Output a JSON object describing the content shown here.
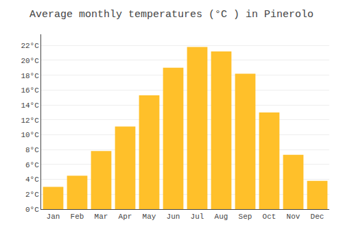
{
  "chart_data": {
    "type": "bar",
    "title": "Average monthly temperatures (°C ) in Pinerolo",
    "categories": [
      "Jan",
      "Feb",
      "Mar",
      "Apr",
      "May",
      "Jun",
      "Jul",
      "Aug",
      "Sep",
      "Oct",
      "Nov",
      "Dec"
    ],
    "values": [
      3.0,
      4.5,
      7.8,
      11.1,
      15.3,
      19.0,
      21.8,
      21.2,
      18.2,
      13.0,
      7.3,
      3.8
    ],
    "color": "#FFC02A",
    "ylim": [
      0,
      23.5
    ],
    "yticks": [
      {
        "value": 0,
        "label": "0°C"
      },
      {
        "value": 2,
        "label": "2°C"
      },
      {
        "value": 4,
        "label": "4°C"
      },
      {
        "value": 6,
        "label": "6°C"
      },
      {
        "value": 8,
        "label": "8°C"
      },
      {
        "value": 10,
        "label": "10°C"
      },
      {
        "value": 12,
        "label": "12°C"
      },
      {
        "value": 14,
        "label": "14°C"
      },
      {
        "value": 16,
        "label": "16°C"
      },
      {
        "value": 18,
        "label": "18°C"
      },
      {
        "value": 20,
        "label": "20°C"
      },
      {
        "value": 22,
        "label": "22°C"
      }
    ],
    "grid": true
  }
}
